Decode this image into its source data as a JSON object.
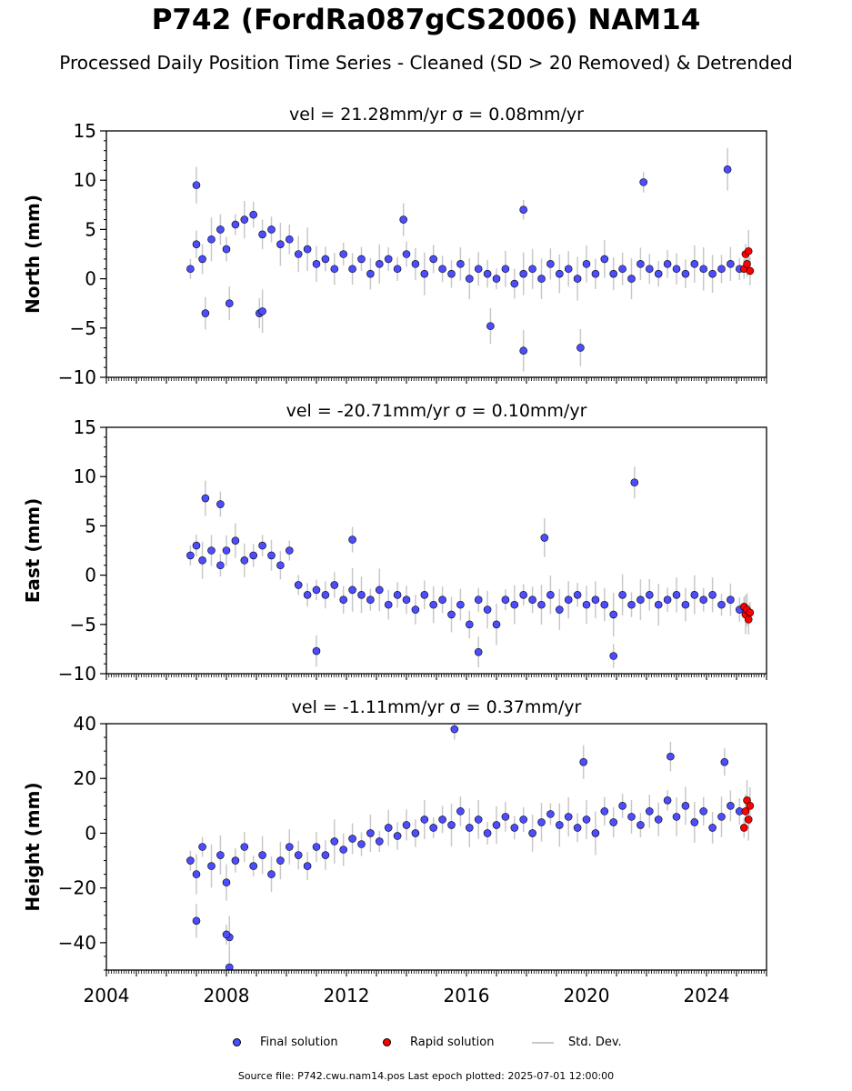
{
  "figure": {
    "title": "P742 (FordRa087gCS2006) NAM14",
    "subtitle": "Processed Daily Position Time Series - Cleaned (SD > 20 Removed) & Detrended",
    "footer": "Source file: P742.cwu.nam14.pos  Last epoch plotted: 2025-07-01 12:00:00"
  },
  "legend": {
    "final_label": "Final solution",
    "rapid_label": "Rapid solution",
    "std_label": "Std. Dev."
  },
  "colors": {
    "final": "#4d4dff",
    "rapid": "#ff0000",
    "std": "#c8c8c8",
    "marker_edge": "#000000"
  },
  "chart_data": [
    {
      "type": "scatter",
      "title": "vel = 21.28mm/yr   σ = 0.08mm/yr",
      "ylabel": "North (mm)",
      "xlim": [
        2004,
        2026
      ],
      "ylim": [
        -10,
        15
      ],
      "yticks": [
        -10,
        -5,
        0,
        5,
        10,
        15
      ],
      "xticks": [
        2004,
        2008,
        2012,
        2016,
        2020,
        2024
      ],
      "show_xtick_labels": false,
      "series": [
        {
          "name": "Final solution",
          "kind": "final",
          "x": [
            2006.8,
            2007.0,
            2007.2,
            2007.5,
            2007.8,
            2008.0,
            2008.3,
            2008.6,
            2008.9,
            2009.2,
            2009.5,
            2009.8,
            2010.1,
            2010.4,
            2010.7,
            2011.0,
            2011.3,
            2011.6,
            2011.9,
            2012.2,
            2012.5,
            2012.8,
            2013.1,
            2013.4,
            2013.7,
            2014.0,
            2014.3,
            2014.6,
            2014.9,
            2015.2,
            2015.5,
            2015.8,
            2016.1,
            2016.4,
            2016.7,
            2017.0,
            2017.3,
            2017.6,
            2017.9,
            2018.2,
            2018.5,
            2018.8,
            2019.1,
            2019.4,
            2019.7,
            2020.0,
            2020.3,
            2020.6,
            2020.9,
            2021.2,
            2021.5,
            2021.8,
            2022.1,
            2022.4,
            2022.7,
            2023.0,
            2023.3,
            2023.6,
            2023.9,
            2024.2,
            2024.5,
            2024.8,
            2025.1,
            2007.0,
            2007.3,
            2008.1,
            2009.1,
            2009.2,
            2013.9,
            2017.9,
            2017.9,
            2021.9,
            2024.7,
            2016.8,
            2019.8
          ],
          "y": [
            1.0,
            3.5,
            2.0,
            4.0,
            5.0,
            3.0,
            5.5,
            6.0,
            6.5,
            4.5,
            5.0,
            3.5,
            4.0,
            2.5,
            3.0,
            1.5,
            2.0,
            1.0,
            2.5,
            1.0,
            2.0,
            0.5,
            1.5,
            2.0,
            1.0,
            2.5,
            1.5,
            0.5,
            2.0,
            1.0,
            0.5,
            1.5,
            0.0,
            1.0,
            0.5,
            0.0,
            1.0,
            -0.5,
            0.5,
            1.0,
            0.0,
            1.5,
            0.5,
            1.0,
            0.0,
            1.5,
            0.5,
            2.0,
            0.5,
            1.0,
            0.0,
            1.5,
            1.0,
            0.5,
            1.5,
            1.0,
            0.5,
            1.5,
            1.0,
            0.5,
            1.0,
            1.5,
            1.0,
            9.5,
            -3.5,
            -2.5,
            -3.5,
            -3.3,
            6.0,
            7.0,
            -7.3,
            9.8,
            11.1,
            -4.8,
            -7.0
          ]
        },
        {
          "name": "Rapid solution",
          "kind": "rapid",
          "x": [
            2025.25,
            2025.3,
            2025.35,
            2025.4,
            2025.45
          ],
          "y": [
            1.0,
            2.5,
            1.5,
            2.8,
            0.8
          ]
        }
      ]
    },
    {
      "type": "scatter",
      "title": "vel = -20.71mm/yr   σ = 0.10mm/yr",
      "ylabel": "East (mm)",
      "xlim": [
        2004,
        2026
      ],
      "ylim": [
        -10,
        15
      ],
      "yticks": [
        -10,
        -5,
        0,
        5,
        10,
        15
      ],
      "xticks": [
        2004,
        2008,
        2012,
        2016,
        2020,
        2024
      ],
      "show_xtick_labels": false,
      "series": [
        {
          "name": "Final solution",
          "kind": "final",
          "x": [
            2006.8,
            2007.0,
            2007.2,
            2007.5,
            2007.8,
            2008.0,
            2008.3,
            2008.6,
            2008.9,
            2009.2,
            2009.5,
            2009.8,
            2010.1,
            2010.4,
            2010.7,
            2011.0,
            2011.3,
            2011.6,
            2011.9,
            2012.2,
            2012.5,
            2012.8,
            2013.1,
            2013.4,
            2013.7,
            2014.0,
            2014.3,
            2014.6,
            2014.9,
            2015.2,
            2015.5,
            2015.8,
            2016.1,
            2016.4,
            2016.7,
            2017.0,
            2017.3,
            2017.6,
            2017.9,
            2018.2,
            2018.5,
            2018.8,
            2019.1,
            2019.4,
            2019.7,
            2020.0,
            2020.3,
            2020.6,
            2020.9,
            2021.2,
            2021.5,
            2021.8,
            2022.1,
            2022.4,
            2022.7,
            2023.0,
            2023.3,
            2023.6,
            2023.9,
            2024.2,
            2024.5,
            2024.8,
            2025.1,
            2007.3,
            2007.8,
            2021.6,
            2012.2,
            2018.6,
            2011.0,
            2020.9,
            2016.4
          ],
          "y": [
            2.0,
            3.0,
            1.5,
            2.5,
            1.0,
            2.5,
            3.5,
            1.5,
            2.0,
            3.0,
            2.0,
            1.0,
            2.5,
            -1.0,
            -2.0,
            -1.5,
            -2.0,
            -1.0,
            -2.5,
            -1.5,
            -2.0,
            -2.5,
            -1.5,
            -3.0,
            -2.0,
            -2.5,
            -3.5,
            -2.0,
            -3.0,
            -2.5,
            -4.0,
            -3.0,
            -5.0,
            -2.5,
            -3.5,
            -5.0,
            -2.5,
            -3.0,
            -2.0,
            -2.5,
            -3.0,
            -2.0,
            -3.5,
            -2.5,
            -2.0,
            -3.0,
            -2.5,
            -3.0,
            -4.0,
            -2.0,
            -3.0,
            -2.5,
            -2.0,
            -3.0,
            -2.5,
            -2.0,
            -3.0,
            -2.0,
            -2.5,
            -2.0,
            -3.0,
            -2.5,
            -3.5,
            7.8,
            7.2,
            9.4,
            3.6,
            3.8,
            -7.7,
            -8.2,
            -7.8
          ]
        },
        {
          "name": "Rapid solution",
          "kind": "rapid",
          "x": [
            2025.25,
            2025.3,
            2025.35,
            2025.4,
            2025.45
          ],
          "y": [
            -3.2,
            -4.0,
            -3.5,
            -4.5,
            -3.8
          ]
        }
      ]
    },
    {
      "type": "scatter",
      "title": "vel = -1.11mm/yr   σ = 0.37mm/yr",
      "ylabel": "Height (mm)",
      "xlim": [
        2004,
        2026
      ],
      "ylim": [
        -50,
        40
      ],
      "yticks": [
        -40,
        -20,
        0,
        20,
        40
      ],
      "xticks": [
        2004,
        2008,
        2012,
        2016,
        2020,
        2024
      ],
      "show_xtick_labels": true,
      "series": [
        {
          "name": "Final solution",
          "kind": "final",
          "x": [
            2006.8,
            2007.0,
            2007.2,
            2007.5,
            2007.8,
            2008.0,
            2008.3,
            2008.6,
            2008.9,
            2009.2,
            2009.5,
            2009.8,
            2010.1,
            2010.4,
            2010.7,
            2011.0,
            2011.3,
            2011.6,
            2011.9,
            2012.2,
            2012.5,
            2012.8,
            2013.1,
            2013.4,
            2013.7,
            2014.0,
            2014.3,
            2014.6,
            2014.9,
            2015.2,
            2015.5,
            2015.8,
            2016.1,
            2016.4,
            2016.7,
            2017.0,
            2017.3,
            2017.6,
            2017.9,
            2018.2,
            2018.5,
            2018.8,
            2019.1,
            2019.4,
            2019.7,
            2020.0,
            2020.3,
            2020.6,
            2020.9,
            2021.2,
            2021.5,
            2021.8,
            2022.1,
            2022.4,
            2022.7,
            2023.0,
            2023.3,
            2023.6,
            2023.9,
            2024.2,
            2024.5,
            2024.8,
            2025.1,
            2007.0,
            2008.1,
            2008.1,
            2015.6,
            2019.9,
            2022.8,
            2024.6,
            2008.0
          ],
          "y": [
            -10.0,
            -15.0,
            -5.0,
            -12.0,
            -8.0,
            -18.0,
            -10.0,
            -5.0,
            -12.0,
            -8.0,
            -15.0,
            -10.0,
            -5.0,
            -8.0,
            -12.0,
            -5.0,
            -8.0,
            -3.0,
            -6.0,
            -2.0,
            -4.0,
            0.0,
            -3.0,
            2.0,
            -1.0,
            3.0,
            0.0,
            5.0,
            2.0,
            5.0,
            3.0,
            8.0,
            2.0,
            5.0,
            0.0,
            3.0,
            6.0,
            2.0,
            5.0,
            0.0,
            4.0,
            7.0,
            3.0,
            6.0,
            2.0,
            5.0,
            0.0,
            8.0,
            4.0,
            10.0,
            6.0,
            3.0,
            8.0,
            5.0,
            12.0,
            6.0,
            10.0,
            4.0,
            8.0,
            2.0,
            6.0,
            10.0,
            8.0,
            -32.0,
            -38.0,
            -49.0,
            38.0,
            26.0,
            28.0,
            26.0,
            -37.0
          ]
        },
        {
          "name": "Rapid solution",
          "kind": "rapid",
          "x": [
            2025.25,
            2025.3,
            2025.35,
            2025.4,
            2025.45
          ],
          "y": [
            2.0,
            8.0,
            12.0,
            5.0,
            10.0
          ]
        }
      ]
    }
  ]
}
